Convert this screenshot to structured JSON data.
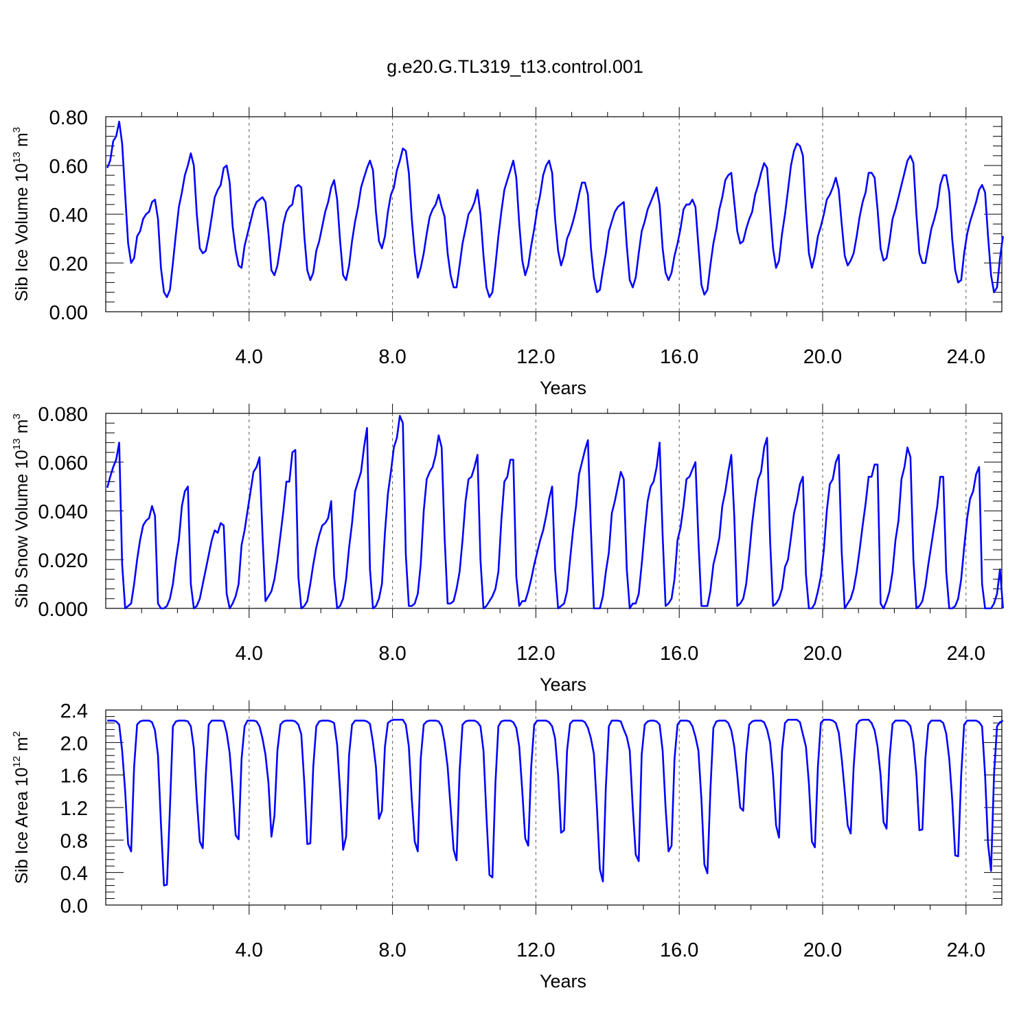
{
  "figure": {
    "title": "g.e20.G.TL319_t13.control.001",
    "line_color": "#0000ff",
    "grid_color": "#555555"
  },
  "chart_data": [
    {
      "type": "line",
      "title": "g.e20.G.TL319_t13.control.001",
      "xlabel": "Years",
      "ylabel": {
        "text": "Sib Ice Volume 10",
        "exp": "13",
        "unit": " m",
        "unit_exp": "3"
      },
      "xlim": [
        0,
        25
      ],
      "ylim": [
        0,
        0.8
      ],
      "xticks": [
        4,
        8,
        12,
        16,
        20,
        24
      ],
      "xtick_labels": [
        "4.0",
        "8.0",
        "12.0",
        "16.0",
        "20.0",
        "24.0"
      ],
      "yticks": [
        0,
        0.2,
        0.4,
        0.6,
        0.8
      ],
      "ytick_labels": [
        "0.00",
        "0.20",
        "0.40",
        "0.60",
        "0.80"
      ],
      "grid": "vertical dashed at major x ticks",
      "x_start": 0.0417,
      "x_step": 0.0833,
      "series": [
        {
          "color": "#0000ff",
          "values": [
            0.59,
            0.62,
            0.7,
            0.72,
            0.78,
            0.69,
            0.48,
            0.28,
            0.2,
            0.22,
            0.31,
            0.33,
            0.38,
            0.4,
            0.41,
            0.45,
            0.46,
            0.38,
            0.18,
            0.08,
            0.06,
            0.09,
            0.2,
            0.32,
            0.43,
            0.49,
            0.56,
            0.6,
            0.65,
            0.6,
            0.4,
            0.26,
            0.24,
            0.25,
            0.31,
            0.39,
            0.47,
            0.5,
            0.52,
            0.59,
            0.6,
            0.53,
            0.35,
            0.25,
            0.19,
            0.18,
            0.27,
            0.32,
            0.37,
            0.42,
            0.45,
            0.46,
            0.47,
            0.45,
            0.32,
            0.17,
            0.15,
            0.19,
            0.27,
            0.36,
            0.41,
            0.43,
            0.44,
            0.51,
            0.52,
            0.51,
            0.31,
            0.17,
            0.13,
            0.16,
            0.25,
            0.29,
            0.35,
            0.41,
            0.45,
            0.51,
            0.54,
            0.46,
            0.29,
            0.15,
            0.13,
            0.19,
            0.29,
            0.37,
            0.43,
            0.51,
            0.55,
            0.59,
            0.62,
            0.58,
            0.41,
            0.29,
            0.26,
            0.31,
            0.41,
            0.48,
            0.51,
            0.58,
            0.62,
            0.67,
            0.66,
            0.57,
            0.38,
            0.24,
            0.14,
            0.18,
            0.24,
            0.32,
            0.39,
            0.42,
            0.44,
            0.48,
            0.43,
            0.39,
            0.24,
            0.15,
            0.1,
            0.1,
            0.19,
            0.28,
            0.34,
            0.4,
            0.42,
            0.45,
            0.5,
            0.4,
            0.23,
            0.1,
            0.06,
            0.08,
            0.19,
            0.31,
            0.41,
            0.5,
            0.54,
            0.58,
            0.62,
            0.55,
            0.36,
            0.21,
            0.15,
            0.19,
            0.27,
            0.34,
            0.42,
            0.48,
            0.56,
            0.6,
            0.62,
            0.57,
            0.38,
            0.25,
            0.19,
            0.23,
            0.3,
            0.33,
            0.37,
            0.42,
            0.48,
            0.53,
            0.53,
            0.48,
            0.26,
            0.14,
            0.08,
            0.09,
            0.17,
            0.24,
            0.33,
            0.37,
            0.41,
            0.43,
            0.44,
            0.45,
            0.27,
            0.13,
            0.1,
            0.14,
            0.24,
            0.33,
            0.37,
            0.42,
            0.45,
            0.48,
            0.51,
            0.44,
            0.26,
            0.16,
            0.13,
            0.16,
            0.23,
            0.28,
            0.34,
            0.42,
            0.44,
            0.44,
            0.46,
            0.43,
            0.27,
            0.11,
            0.07,
            0.09,
            0.19,
            0.28,
            0.34,
            0.42,
            0.47,
            0.54,
            0.56,
            0.57,
            0.45,
            0.33,
            0.28,
            0.29,
            0.34,
            0.38,
            0.41,
            0.48,
            0.52,
            0.57,
            0.61,
            0.59,
            0.42,
            0.26,
            0.18,
            0.21,
            0.32,
            0.4,
            0.5,
            0.6,
            0.66,
            0.69,
            0.68,
            0.64,
            0.42,
            0.24,
            0.18,
            0.23,
            0.31,
            0.35,
            0.4,
            0.46,
            0.48,
            0.51,
            0.55,
            0.5,
            0.36,
            0.23,
            0.19,
            0.21,
            0.24,
            0.31,
            0.39,
            0.45,
            0.49,
            0.57,
            0.57,
            0.55,
            0.42,
            0.26,
            0.21,
            0.22,
            0.29,
            0.38,
            0.42,
            0.47,
            0.52,
            0.57,
            0.62,
            0.64,
            0.61,
            0.4,
            0.24,
            0.2,
            0.2,
            0.27,
            0.34,
            0.38,
            0.43,
            0.52,
            0.56,
            0.56,
            0.49,
            0.3,
            0.17,
            0.12,
            0.13,
            0.24,
            0.32,
            0.37,
            0.41,
            0.45,
            0.5,
            0.52,
            0.49,
            0.31,
            0.15,
            0.08,
            0.1,
            0.22,
            0.31
          ]
        }
      ]
    },
    {
      "type": "line",
      "xlabel": "Years",
      "ylabel": {
        "text": "Sib Snow Volume 10",
        "exp": "13",
        "unit": " m",
        "unit_exp": "3"
      },
      "xlim": [
        0,
        25
      ],
      "ylim": [
        0,
        0.08
      ],
      "xticks": [
        4,
        8,
        12,
        16,
        20,
        24
      ],
      "xtick_labels": [
        "4.0",
        "8.0",
        "12.0",
        "16.0",
        "20.0",
        "24.0"
      ],
      "yticks": [
        0,
        0.02,
        0.04,
        0.06,
        0.08
      ],
      "ytick_labels": [
        "0.000",
        "0.020",
        "0.040",
        "0.060",
        "0.080"
      ],
      "grid": "vertical dashed at major x ticks",
      "x_start": 0.0417,
      "x_step": 0.0833,
      "series": [
        {
          "color": "#0000ff",
          "values": [
            0.0495,
            0.054,
            0.058,
            0.061,
            0.068,
            0.018,
            0.0,
            0.001,
            0.002,
            0.01,
            0.02,
            0.028,
            0.034,
            0.036,
            0.037,
            0.042,
            0.038,
            0.002,
            0.0,
            0.0,
            0.001,
            0.004,
            0.01,
            0.02,
            0.028,
            0.042,
            0.048,
            0.05,
            0.01,
            0.0,
            0.001,
            0.004,
            0.01,
            0.016,
            0.022,
            0.028,
            0.032,
            0.031,
            0.035,
            0.034,
            0.006,
            0.0,
            0.002,
            0.005,
            0.01,
            0.026,
            0.032,
            0.04,
            0.048,
            0.056,
            0.058,
            0.062,
            0.03,
            0.003,
            0.005,
            0.007,
            0.012,
            0.02,
            0.03,
            0.04,
            0.052,
            0.052,
            0.064,
            0.065,
            0.013,
            0.0,
            0.001,
            0.003,
            0.01,
            0.018,
            0.025,
            0.03,
            0.034,
            0.035,
            0.037,
            0.044,
            0.013,
            0.0,
            0.001,
            0.004,
            0.012,
            0.025,
            0.035,
            0.048,
            0.052,
            0.056,
            0.066,
            0.074,
            0.016,
            0.0,
            0.001,
            0.004,
            0.01,
            0.031,
            0.047,
            0.056,
            0.066,
            0.07,
            0.079,
            0.076,
            0.022,
            0.001,
            0.001,
            0.002,
            0.006,
            0.018,
            0.04,
            0.053,
            0.056,
            0.058,
            0.063,
            0.071,
            0.066,
            0.029,
            0.002,
            0.002,
            0.003,
            0.008,
            0.015,
            0.028,
            0.044,
            0.053,
            0.054,
            0.058,
            0.063,
            0.02,
            0.0,
            0.001,
            0.003,
            0.005,
            0.008,
            0.015,
            0.036,
            0.052,
            0.054,
            0.061,
            0.061,
            0.013,
            0.001,
            0.003,
            0.003,
            0.007,
            0.012,
            0.018,
            0.023,
            0.028,
            0.032,
            0.038,
            0.045,
            0.05,
            0.016,
            0.0,
            0.001,
            0.002,
            0.007,
            0.02,
            0.032,
            0.042,
            0.055,
            0.06,
            0.065,
            0.069,
            0.032,
            0.0,
            0.0,
            0.0,
            0.005,
            0.015,
            0.023,
            0.039,
            0.044,
            0.05,
            0.056,
            0.053,
            0.016,
            0.0,
            0.002,
            0.002,
            0.006,
            0.018,
            0.032,
            0.044,
            0.05,
            0.052,
            0.058,
            0.068,
            0.03,
            0.001,
            0.002,
            0.004,
            0.012,
            0.028,
            0.033,
            0.042,
            0.053,
            0.054,
            0.057,
            0.06,
            0.028,
            0.001,
            0.001,
            0.001,
            0.007,
            0.018,
            0.023,
            0.029,
            0.042,
            0.048,
            0.056,
            0.063,
            0.038,
            0.001,
            0.002,
            0.004,
            0.01,
            0.022,
            0.035,
            0.045,
            0.053,
            0.056,
            0.066,
            0.07,
            0.028,
            0.001,
            0.002,
            0.004,
            0.008,
            0.017,
            0.02,
            0.029,
            0.039,
            0.044,
            0.051,
            0.054,
            0.014,
            0.0,
            0.0,
            0.002,
            0.007,
            0.013,
            0.024,
            0.04,
            0.051,
            0.053,
            0.06,
            0.063,
            0.023,
            0.0,
            0.002,
            0.004,
            0.008,
            0.015,
            0.024,
            0.034,
            0.043,
            0.054,
            0.054,
            0.059,
            0.059,
            0.002,
            0.0,
            0.003,
            0.007,
            0.015,
            0.028,
            0.036,
            0.053,
            0.058,
            0.066,
            0.062,
            0.02,
            0.0,
            0.001,
            0.003,
            0.009,
            0.018,
            0.026,
            0.034,
            0.042,
            0.054,
            0.054,
            0.015,
            0.0,
            0.0,
            0.001,
            0.004,
            0.012,
            0.025,
            0.037,
            0.045,
            0.048,
            0.055,
            0.058,
            0.01,
            0.0,
            0.0,
            0.0,
            0.002,
            0.006,
            0.016,
            0.0
          ]
        }
      ]
    },
    {
      "type": "line",
      "xlabel": "Years",
      "ylabel": {
        "text": "Sib Ice Area 10",
        "exp": "12",
        "unit": " m",
        "unit_exp": "2"
      },
      "xlim": [
        0,
        25
      ],
      "ylim": [
        0,
        2.4
      ],
      "xticks": [
        4,
        8,
        12,
        16,
        20,
        24
      ],
      "xtick_labels": [
        "4.0",
        "8.0",
        "12.0",
        "16.0",
        "20.0",
        "24.0"
      ],
      "yticks": [
        0,
        0.4,
        0.8,
        1.2,
        1.6,
        2.0,
        2.4
      ],
      "ytick_labels": [
        "0.0",
        "0.4",
        "0.8",
        "1.2",
        "1.6",
        "2.0",
        "2.4"
      ],
      "grid": "vertical dashed at major x ticks",
      "x_start": 0.0417,
      "x_step": 0.0833,
      "series": [
        {
          "color": "#0000ff",
          "values": [
            2.27,
            2.27,
            2.27,
            2.26,
            2.22,
            1.9,
            1.4,
            0.75,
            0.66,
            1.7,
            2.22,
            2.26,
            2.27,
            2.27,
            2.27,
            2.25,
            2.15,
            1.84,
            1.0,
            0.24,
            0.25,
            1.2,
            2.2,
            2.26,
            2.27,
            2.27,
            2.27,
            2.26,
            2.2,
            1.93,
            1.3,
            0.78,
            0.7,
            1.6,
            2.22,
            2.27,
            2.27,
            2.27,
            2.27,
            2.26,
            2.12,
            1.87,
            1.4,
            0.86,
            0.81,
            1.8,
            2.2,
            2.27,
            2.27,
            2.27,
            2.26,
            2.2,
            2.05,
            1.85,
            1.5,
            0.84,
            1.1,
            1.9,
            2.22,
            2.26,
            2.27,
            2.27,
            2.27,
            2.26,
            2.22,
            2.1,
            1.5,
            0.75,
            0.76,
            1.7,
            2.2,
            2.26,
            2.27,
            2.27,
            2.27,
            2.26,
            2.24,
            1.97,
            1.4,
            0.68,
            0.84,
            1.85,
            2.22,
            2.27,
            2.27,
            2.27,
            2.27,
            2.26,
            2.23,
            2.0,
            1.7,
            1.06,
            1.16,
            1.95,
            2.24,
            2.27,
            2.28,
            2.28,
            2.28,
            2.28,
            2.22,
            1.95,
            1.3,
            0.78,
            0.66,
            1.8,
            2.22,
            2.26,
            2.27,
            2.27,
            2.27,
            2.26,
            2.2,
            2.0,
            1.7,
            1.2,
            0.68,
            0.55,
            1.65,
            2.22,
            2.26,
            2.27,
            2.27,
            2.27,
            2.25,
            2.2,
            1.9,
            1.1,
            0.37,
            0.34,
            1.5,
            2.2,
            2.26,
            2.27,
            2.27,
            2.27,
            2.25,
            2.18,
            1.95,
            1.4,
            0.82,
            0.73,
            1.7,
            2.22,
            2.27,
            2.27,
            2.27,
            2.27,
            2.25,
            2.2,
            2.05,
            1.6,
            0.89,
            0.92,
            1.9,
            2.23,
            2.27,
            2.27,
            2.27,
            2.27,
            2.25,
            2.18,
            2.05,
            1.86,
            1.2,
            0.44,
            0.29,
            1.45,
            2.2,
            2.27,
            2.27,
            2.27,
            2.26,
            2.16,
            2.07,
            1.9,
            1.2,
            0.62,
            0.54,
            1.85,
            2.22,
            2.26,
            2.27,
            2.27,
            2.26,
            2.22,
            1.9,
            1.2,
            0.66,
            0.73,
            1.8,
            2.22,
            2.27,
            2.27,
            2.27,
            2.26,
            2.2,
            2.07,
            1.9,
            1.3,
            0.5,
            0.39,
            1.4,
            2.18,
            2.26,
            2.27,
            2.27,
            2.27,
            2.24,
            2.15,
            1.95,
            1.6,
            1.2,
            1.16,
            1.85,
            2.22,
            2.26,
            2.27,
            2.27,
            2.27,
            2.25,
            2.16,
            2.0,
            1.6,
            0.98,
            0.83,
            1.9,
            2.24,
            2.28,
            2.28,
            2.28,
            2.28,
            2.25,
            2.1,
            1.95,
            1.5,
            0.78,
            0.71,
            1.7,
            2.24,
            2.28,
            2.28,
            2.28,
            2.27,
            2.24,
            2.12,
            1.8,
            1.4,
            0.98,
            0.88,
            1.7,
            2.22,
            2.27,
            2.28,
            2.28,
            2.28,
            2.24,
            2.15,
            1.95,
            1.6,
            1.02,
            0.94,
            1.8,
            2.23,
            2.27,
            2.27,
            2.27,
            2.27,
            2.25,
            2.2,
            2.0,
            1.6,
            0.92,
            0.93,
            1.8,
            2.22,
            2.27,
            2.27,
            2.27,
            2.27,
            2.24,
            2.11,
            1.8,
            1.3,
            0.61,
            0.6,
            1.6,
            2.22,
            2.27,
            2.27,
            2.27,
            2.27,
            2.25,
            2.2,
            1.6,
            0.75,
            0.42,
            1.6,
            2.2,
            2.25,
            2.27
          ]
        }
      ]
    }
  ]
}
